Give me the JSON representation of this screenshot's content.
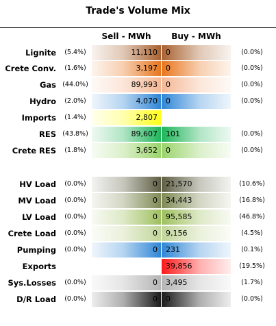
{
  "title": "Trade's Volume Mix",
  "headers": {
    "sell": "Sell - MWh",
    "buy": "Buy - MWh"
  },
  "rows": [
    {
      "label": "Lignite",
      "sell_pct": "(5.4%)",
      "sell": "11,110",
      "buy": "0",
      "buy_pct": "(0.0%)",
      "sell_color": "#a86230",
      "buy_color": "#a86230"
    },
    {
      "label": "Crete Conv.",
      "sell_pct": "(1.6%)",
      "sell": "3,197",
      "buy": "0",
      "buy_pct": "(0.0%)",
      "sell_color": "#e8761e",
      "buy_color": "#e8761e"
    },
    {
      "label": "Gas",
      "sell_pct": "(44.0%)",
      "sell": "89,993",
      "buy": "0",
      "buy_pct": "(0.0%)",
      "sell_color": "#f5b895",
      "buy_color": "#f5b895"
    },
    {
      "label": "Hydro",
      "sell_pct": "(2.0%)",
      "sell": "4,070",
      "buy": "0",
      "buy_pct": "(0.0%)",
      "sell_color": "#2f86d6",
      "buy_color": "#2f86d6"
    },
    {
      "label": "Imports",
      "sell_pct": "(1.4%)",
      "sell": "2,807",
      "buy": "",
      "buy_pct": "",
      "sell_color": "#ffff1a",
      "buy_color": "#ffff1a"
    },
    {
      "label": "RES",
      "sell_pct": "(43.8%)",
      "sell": "89,607",
      "buy": "101",
      "buy_pct": "(0.0%)",
      "sell_color": "#1fb55a",
      "buy_color": "#1fb55a"
    },
    {
      "label": "Crete RES",
      "sell_pct": "(1.8%)",
      "sell": "3,652",
      "buy": "0",
      "buy_pct": "(0.0%)",
      "sell_color": "#9ad46a",
      "buy_color": "#9ad46a"
    },
    {
      "label": "HV Load",
      "sell_pct": "(0.0%)",
      "sell": "0",
      "buy": "21,570",
      "buy_pct": "(10.6%)",
      "sell_color": "#5f5f45",
      "buy_color": "#5f5f45"
    },
    {
      "label": "MV Load",
      "sell_pct": "(0.0%)",
      "sell": "0",
      "buy": "34,443",
      "buy_pct": "(16.8%)",
      "sell_color": "#7f8a55",
      "buy_color": "#7f8a55"
    },
    {
      "label": "LV Load",
      "sell_pct": "(0.0%)",
      "sell": "0",
      "buy": "95,585",
      "buy_pct": "(46.8%)",
      "sell_color": "#9fc060",
      "buy_color": "#9fc060"
    },
    {
      "label": "Crete Load",
      "sell_pct": "(0.0%)",
      "sell": "0",
      "buy": "9,156",
      "buy_pct": "(4.5%)",
      "sell_color": "#c2d69a",
      "buy_color": "#c2d69a"
    },
    {
      "label": "Pumping",
      "sell_pct": "(0.0%)",
      "sell": "0",
      "buy": "231",
      "buy_pct": "(0.1%)",
      "sell_color": "#2f86d6",
      "buy_color": "#2f86d6"
    },
    {
      "label": "Exports",
      "sell_pct": "",
      "sell": "",
      "buy": "39,856",
      "buy_pct": "(19.5%)",
      "sell_color": "#ff1a1a",
      "buy_color": "#ff1a1a"
    },
    {
      "label": "Sys.Losses",
      "sell_pct": "(0.0%)",
      "sell": "0",
      "buy": "3,495",
      "buy_pct": "(1.7%)",
      "sell_color": "#b5b5b5",
      "buy_color": "#b5b5b5"
    },
    {
      "label": "D/R Load",
      "sell_pct": "(0.0%)",
      "sell": "0",
      "buy": "0",
      "buy_pct": "(0.0%)",
      "sell_color": "#1a1a1a",
      "buy_color": "#1a1a1a"
    }
  ]
}
